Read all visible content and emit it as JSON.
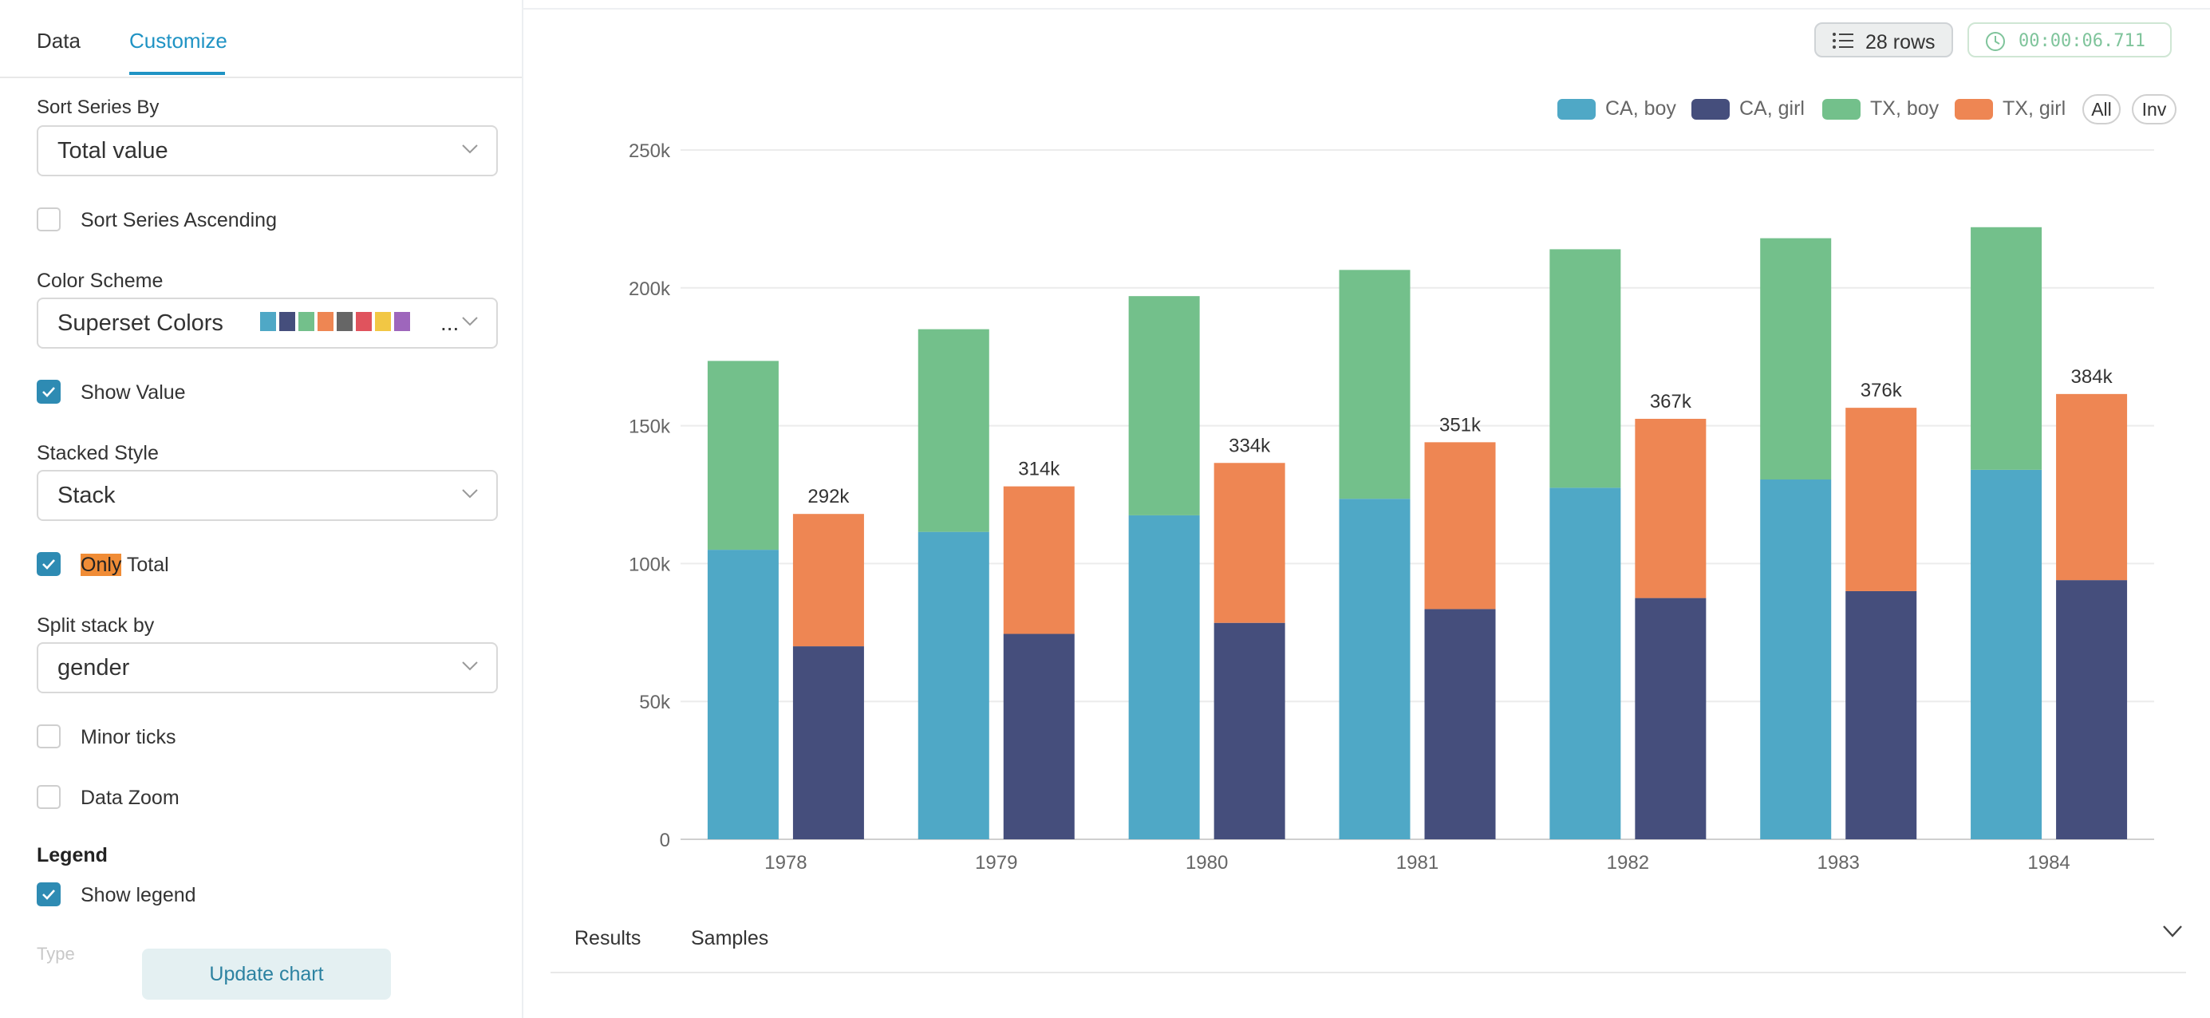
{
  "tabs": {
    "data": "Data",
    "customize": "Customize"
  },
  "customize": {
    "sort_series_by": {
      "label": "Sort Series By",
      "value": "Total value"
    },
    "sort_ascending": {
      "label": "Sort Series Ascending",
      "checked": false
    },
    "color_scheme": {
      "label": "Color Scheme",
      "value": "Superset Colors",
      "ellipsis": "...",
      "swatches": [
        "#4fa8c6",
        "#454e7c",
        "#73c08b",
        "#ee8653",
        "#666666",
        "#e0535d",
        "#f2c744",
        "#9e66bc"
      ]
    },
    "show_value": {
      "label": "Show Value",
      "checked": true
    },
    "stacked_style": {
      "label": "Stacked Style",
      "value": "Stack"
    },
    "only_total": {
      "label_highlight": "Only",
      "label_rest": " Total",
      "checked": true
    },
    "split_stack": {
      "label": "Split stack by",
      "value": "gender"
    },
    "minor_ticks": {
      "label": "Minor ticks",
      "checked": false
    },
    "data_zoom": {
      "label": "Data Zoom",
      "checked": false
    },
    "legend_header": "Legend",
    "show_legend": {
      "label": "Show legend",
      "checked": true
    },
    "faded_label": "Type",
    "update_button": "Update chart"
  },
  "toolbar": {
    "rows": "28 rows",
    "timer": "00:00:06.711"
  },
  "legend": {
    "items": [
      {
        "label": "CA, boy",
        "color": "#4fa8c6"
      },
      {
        "label": "CA, girl",
        "color": "#454e7c"
      },
      {
        "label": "TX, boy",
        "color": "#73c08b"
      },
      {
        "label": "TX, girl",
        "color": "#ee8653"
      }
    ],
    "all": "All",
    "inv": "Inv"
  },
  "chart_data": {
    "type": "bar",
    "stacked": true,
    "categories": [
      "1978",
      "1979",
      "1980",
      "1981",
      "1982",
      "1983",
      "1984"
    ],
    "stacks": [
      {
        "name": "boy",
        "series": [
          {
            "name": "CA, boy",
            "color": "#4fa8c6",
            "values": [
              105000,
              111500,
              117500,
              123500,
              127500,
              130500,
              134000
            ]
          },
          {
            "name": "TX, boy",
            "color": "#73c08b",
            "values": [
              68500,
              73500,
              79500,
              83000,
              86500,
              87500,
              88000
            ]
          }
        ]
      },
      {
        "name": "girl",
        "series": [
          {
            "name": "CA, girl",
            "color": "#454e7c",
            "values": [
              70000,
              74500,
              78500,
              83500,
              87500,
              90000,
              94000
            ]
          },
          {
            "name": "TX, girl",
            "color": "#ee8653",
            "values": [
              48000,
              53500,
              58000,
              60500,
              65000,
              66500,
              67500
            ]
          }
        ]
      }
    ],
    "total_labels": [
      "292k",
      "314k",
      "334k",
      "351k",
      "367k",
      "376k",
      "384k"
    ],
    "y_ticks": [
      "0",
      "50k",
      "100k",
      "150k",
      "200k",
      "250k"
    ],
    "ylim": [
      0,
      250000
    ],
    "grid": true,
    "legend_position": "top-right"
  },
  "bottom_tabs": {
    "results": "Results",
    "samples": "Samples"
  }
}
